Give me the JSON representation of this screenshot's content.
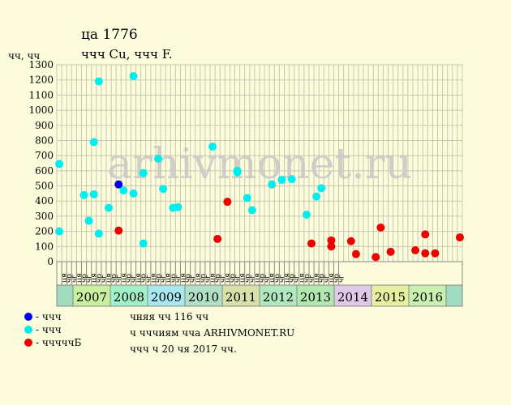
{
  "header": {
    "title": "ца 1776",
    "subtitle": "ччч Cu, ччч F.",
    "y_unit": "чч, чч"
  },
  "legend": [
    {
      "label": "- ччч",
      "color": "#0000ee"
    },
    {
      "label": "- ччч",
      "color": "#00eeee"
    },
    {
      "label": "- чччччБ",
      "color": "#ee0000"
    }
  ],
  "footer": {
    "line1": "чняя чч 116 чч",
    "line2": "ч чччиям чча ARHIVMONET.RU",
    "line3": "ччч ч 20 чя 2017 чч."
  },
  "watermark": "arhivmonet.ru",
  "chart_data": {
    "type": "scatter",
    "ylim": [
      0,
      1300
    ],
    "yticks": [
      0,
      100,
      200,
      300,
      400,
      500,
      600,
      700,
      800,
      900,
      1000,
      1100,
      1200,
      1300
    ],
    "grid": true,
    "x_subcategories": [
      "ця",
      "чр",
      "чг",
      "ця",
      "чр",
      "чг",
      "ця",
      "чр",
      "чг",
      "ця",
      "чр",
      "чг",
      "ця",
      "чр",
      "чг",
      "ця",
      "чр",
      "чг",
      "ця",
      "чр",
      "чг",
      "ця",
      "чр",
      "чг",
      "ця",
      "чр",
      "чг",
      "ця",
      "чр",
      "чг",
      "ця",
      "чр",
      "чг",
      "ця",
      "чр",
      "чг",
      "ця",
      "чр",
      "чг",
      "ця",
      "чр",
      "чг",
      "ця",
      "чр",
      "чг",
      "ця",
      "чр",
      "чг",
      "ця",
      "чр",
      "чг",
      "ця",
      "чр",
      "чг",
      "ця",
      "чр",
      "чг"
    ],
    "years": [
      {
        "label": "",
        "span": 1,
        "color": "#a0ddc0"
      },
      {
        "label": "2007",
        "span": 6,
        "color": "#c8f0a0"
      },
      {
        "label": "2008",
        "span": 6,
        "color": "#a0f0c8"
      },
      {
        "label": "2009",
        "span": 6,
        "color": "#a8e8f0"
      },
      {
        "label": "2010",
        "span": 6,
        "color": "#b0e0c8"
      },
      {
        "label": "2011",
        "span": 6,
        "color": "#d8e0a8"
      },
      {
        "label": "2012",
        "span": 6,
        "color": "#b0e8c0"
      },
      {
        "label": "2013",
        "span": 6,
        "color": "#b0e8b0"
      },
      {
        "label": "2014",
        "span": 6,
        "color": "#e0c8e8"
      },
      {
        "label": "2015",
        "span": 6,
        "color": "#e8f0a0"
      },
      {
        "label": "2016",
        "span": 6,
        "color": "#c8f0b0"
      },
      {
        "label": "",
        "span": 1,
        "color": "#a0ddc0"
      }
    ],
    "series": [
      {
        "color": "#00eeee",
        "points": [
          [
            0,
            645
          ],
          [
            0,
            200
          ],
          [
            5,
            440
          ],
          [
            6,
            270
          ],
          [
            7,
            790
          ],
          [
            7,
            445
          ],
          [
            8,
            1190
          ],
          [
            8,
            185
          ],
          [
            10,
            355
          ],
          [
            13,
            470
          ],
          [
            15,
            1225
          ],
          [
            15,
            450
          ],
          [
            17,
            585
          ],
          [
            17,
            120
          ],
          [
            20,
            680
          ],
          [
            21,
            480
          ],
          [
            23,
            355
          ],
          [
            24,
            360
          ],
          [
            31,
            760
          ],
          [
            36,
            600
          ],
          [
            36,
            590
          ],
          [
            38,
            420
          ],
          [
            39,
            340
          ],
          [
            43,
            510
          ],
          [
            45,
            540
          ],
          [
            47,
            545
          ],
          [
            50,
            310
          ],
          [
            52,
            430
          ],
          [
            53,
            485
          ]
        ]
      },
      {
        "color": "#0000ee",
        "points": [
          [
            12,
            510
          ]
        ]
      },
      {
        "color": "#ee0000",
        "points": [
          [
            12,
            205
          ],
          [
            32,
            150
          ],
          [
            34,
            395
          ],
          [
            51,
            120
          ],
          [
            55,
            140
          ],
          [
            55,
            100
          ],
          [
            59,
            135
          ],
          [
            60,
            50
          ],
          [
            64,
            30
          ],
          [
            65,
            225
          ],
          [
            67,
            65
          ],
          [
            72,
            75
          ],
          [
            74,
            180
          ],
          [
            74,
            55
          ],
          [
            76,
            55
          ],
          [
            81,
            160
          ]
        ]
      }
    ]
  }
}
